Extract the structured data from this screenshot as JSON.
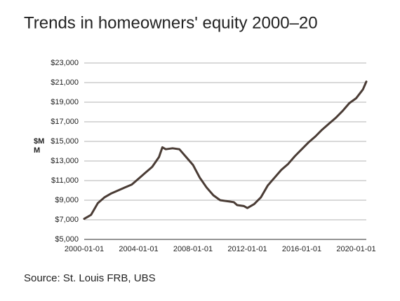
{
  "chart_data": {
    "type": "line",
    "title": "Trends in homeowners' equity 2000–20",
    "y_label": "$MM",
    "source": "Source: St. Louis FRB, UBS",
    "color": "#4a3c35",
    "x": [
      "2000-01-01",
      "2000-07-01",
      "2001-01-01",
      "2001-07-01",
      "2002-01-01",
      "2002-07-01",
      "2003-01-01",
      "2003-07-01",
      "2004-01-01",
      "2004-07-01",
      "2005-01-01",
      "2005-07-01",
      "2005-10-01",
      "2006-01-01",
      "2006-07-01",
      "2007-01-01",
      "2007-04-01",
      "2007-07-01",
      "2008-01-01",
      "2008-07-01",
      "2009-01-01",
      "2009-07-01",
      "2010-01-01",
      "2010-07-01",
      "2011-01-01",
      "2011-04-01",
      "2011-10-01",
      "2012-01-01",
      "2012-07-01",
      "2013-01-01",
      "2013-07-01",
      "2014-01-01",
      "2014-07-01",
      "2015-01-01",
      "2015-07-01",
      "2016-01-01",
      "2016-07-01",
      "2017-01-01",
      "2017-07-01",
      "2018-01-01",
      "2018-07-01",
      "2019-01-01",
      "2019-07-01",
      "2020-01-01",
      "2020-07-01",
      "2020-10-01"
    ],
    "values": [
      7100,
      7500,
      8700,
      9300,
      9700,
      10000,
      10300,
      10600,
      11200,
      11800,
      12400,
      13400,
      14400,
      14200,
      14300,
      14200,
      13800,
      13400,
      12600,
      11300,
      10300,
      9500,
      9000,
      8900,
      8800,
      8500,
      8400,
      8200,
      8600,
      9300,
      10500,
      11300,
      12100,
      12700,
      13500,
      14200,
      14900,
      15500,
      16200,
      16800,
      17400,
      18100,
      18900,
      19400,
      20300,
      21100
    ],
    "xlim": [
      "2000-01-01",
      "2020-10-01"
    ],
    "xticks": [
      "2000-01-01",
      "2004-01-01",
      "2008-01-01",
      "2012-01-01",
      "2016-01-01",
      "2020-01-01"
    ],
    "ylim": [
      5000,
      23000
    ],
    "yticks": [
      {
        "value": 5000,
        "label": "$5,000"
      },
      {
        "value": 7000,
        "label": "$7,000"
      },
      {
        "value": 9000,
        "label": "$9,000"
      },
      {
        "value": 11000,
        "label": "$11,000"
      },
      {
        "value": 13000,
        "label": "$13,000"
      },
      {
        "value": 15000,
        "label": "$15,000"
      },
      {
        "value": 17000,
        "label": "$17,000"
      },
      {
        "value": 19000,
        "label": "$19,000"
      },
      {
        "value": 21000,
        "label": "$21,000"
      },
      {
        "value": 23000,
        "label": "$23,000"
      }
    ],
    "grid": true
  }
}
